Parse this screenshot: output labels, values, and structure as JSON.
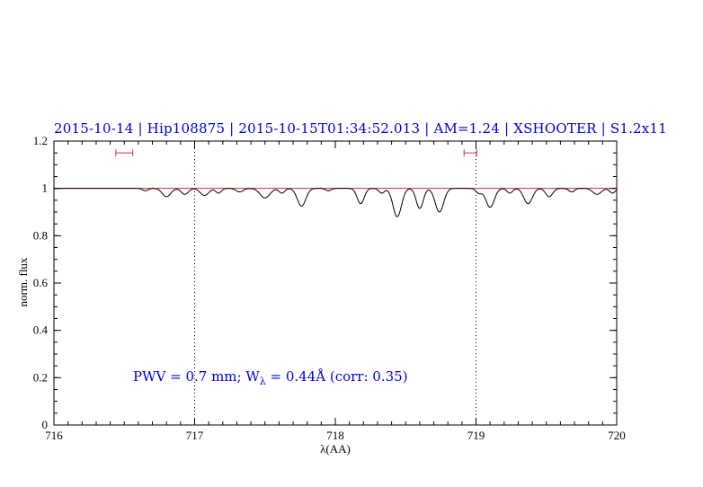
{
  "title": "2015-10-14 | Hip108875 | 2015-10-15T01:34:52.013 | AM=1.24 | XSHOOTER | S1.2x11",
  "annotation": {
    "prefix": "PWV = 0.7 mm; W",
    "sub": "λ",
    "suffix": " = 0.44Å (corr: 0.35)"
  },
  "axes": {
    "xlabel": "λ(AA)",
    "ylabel": "norm. flux"
  },
  "colors": {
    "title": "#0000dd",
    "annotation": "#0000dd",
    "spectrum": "#000000",
    "continuum": "#cc3333",
    "marker": "#cc3333",
    "guide": "#000000",
    "axis": "#000000"
  },
  "chart_data": {
    "type": "line",
    "title": "2015-10-14 | Hip108875 | 2015-10-15T01:34:52.013 | AM=1.24 | XSHOOTER | S1.2x11",
    "xlabel": "λ(AA)",
    "ylabel": "norm. flux",
    "xlim": [
      716,
      720
    ],
    "ylim": [
      0,
      1.2
    ],
    "xticks": [
      {
        "v": 716,
        "label": "716"
      },
      {
        "v": 717,
        "label": "717"
      },
      {
        "v": 718,
        "label": "718"
      },
      {
        "v": 719,
        "label": "719"
      },
      {
        "v": 720,
        "label": "720"
      }
    ],
    "yticks": [
      {
        "v": 0,
        "label": "0"
      },
      {
        "v": 0.2,
        "label": "0.2"
      },
      {
        "v": 0.4,
        "label": "0.4"
      },
      {
        "v": 0.6,
        "label": "0.6"
      },
      {
        "v": 0.8,
        "label": "0.8"
      },
      {
        "v": 1,
        "label": "1"
      },
      {
        "v": 1.2,
        "label": "1.2"
      }
    ],
    "xminor_step": 0.1,
    "yminor_step": 0.05,
    "grid": false,
    "legend": "none",
    "continuum_level": 1.0,
    "dotted_guides_x": [
      717,
      719
    ],
    "range_markers": [
      {
        "center": 716.5,
        "halfwidth": 0.06,
        "y": 1.15
      },
      {
        "center": 718.96,
        "halfwidth": 0.045,
        "y": 1.15
      }
    ],
    "absorption_lines": [
      {
        "center": 716.65,
        "depth": 0.01,
        "sigma": 0.02
      },
      {
        "center": 716.8,
        "depth": 0.035,
        "sigma": 0.03
      },
      {
        "center": 716.93,
        "depth": 0.025,
        "sigma": 0.025
      },
      {
        "center": 717.07,
        "depth": 0.03,
        "sigma": 0.03
      },
      {
        "center": 717.17,
        "depth": 0.02,
        "sigma": 0.02
      },
      {
        "center": 717.32,
        "depth": 0.015,
        "sigma": 0.025
      },
      {
        "center": 717.5,
        "depth": 0.04,
        "sigma": 0.035
      },
      {
        "center": 717.62,
        "depth": 0.02,
        "sigma": 0.02
      },
      {
        "center": 717.76,
        "depth": 0.075,
        "sigma": 0.03
      },
      {
        "center": 717.95,
        "depth": 0.01,
        "sigma": 0.02
      },
      {
        "center": 718.18,
        "depth": 0.065,
        "sigma": 0.025
      },
      {
        "center": 718.33,
        "depth": 0.02,
        "sigma": 0.02
      },
      {
        "center": 718.44,
        "depth": 0.12,
        "sigma": 0.03
      },
      {
        "center": 718.6,
        "depth": 0.085,
        "sigma": 0.025
      },
      {
        "center": 718.74,
        "depth": 0.1,
        "sigma": 0.03
      },
      {
        "center": 719.02,
        "depth": 0.02,
        "sigma": 0.02
      },
      {
        "center": 719.1,
        "depth": 0.08,
        "sigma": 0.03
      },
      {
        "center": 719.24,
        "depth": 0.02,
        "sigma": 0.02
      },
      {
        "center": 719.37,
        "depth": 0.065,
        "sigma": 0.03
      },
      {
        "center": 719.52,
        "depth": 0.035,
        "sigma": 0.025
      },
      {
        "center": 719.68,
        "depth": 0.015,
        "sigma": 0.02
      },
      {
        "center": 719.86,
        "depth": 0.025,
        "sigma": 0.03
      },
      {
        "center": 719.97,
        "depth": 0.02,
        "sigma": 0.02
      }
    ]
  }
}
